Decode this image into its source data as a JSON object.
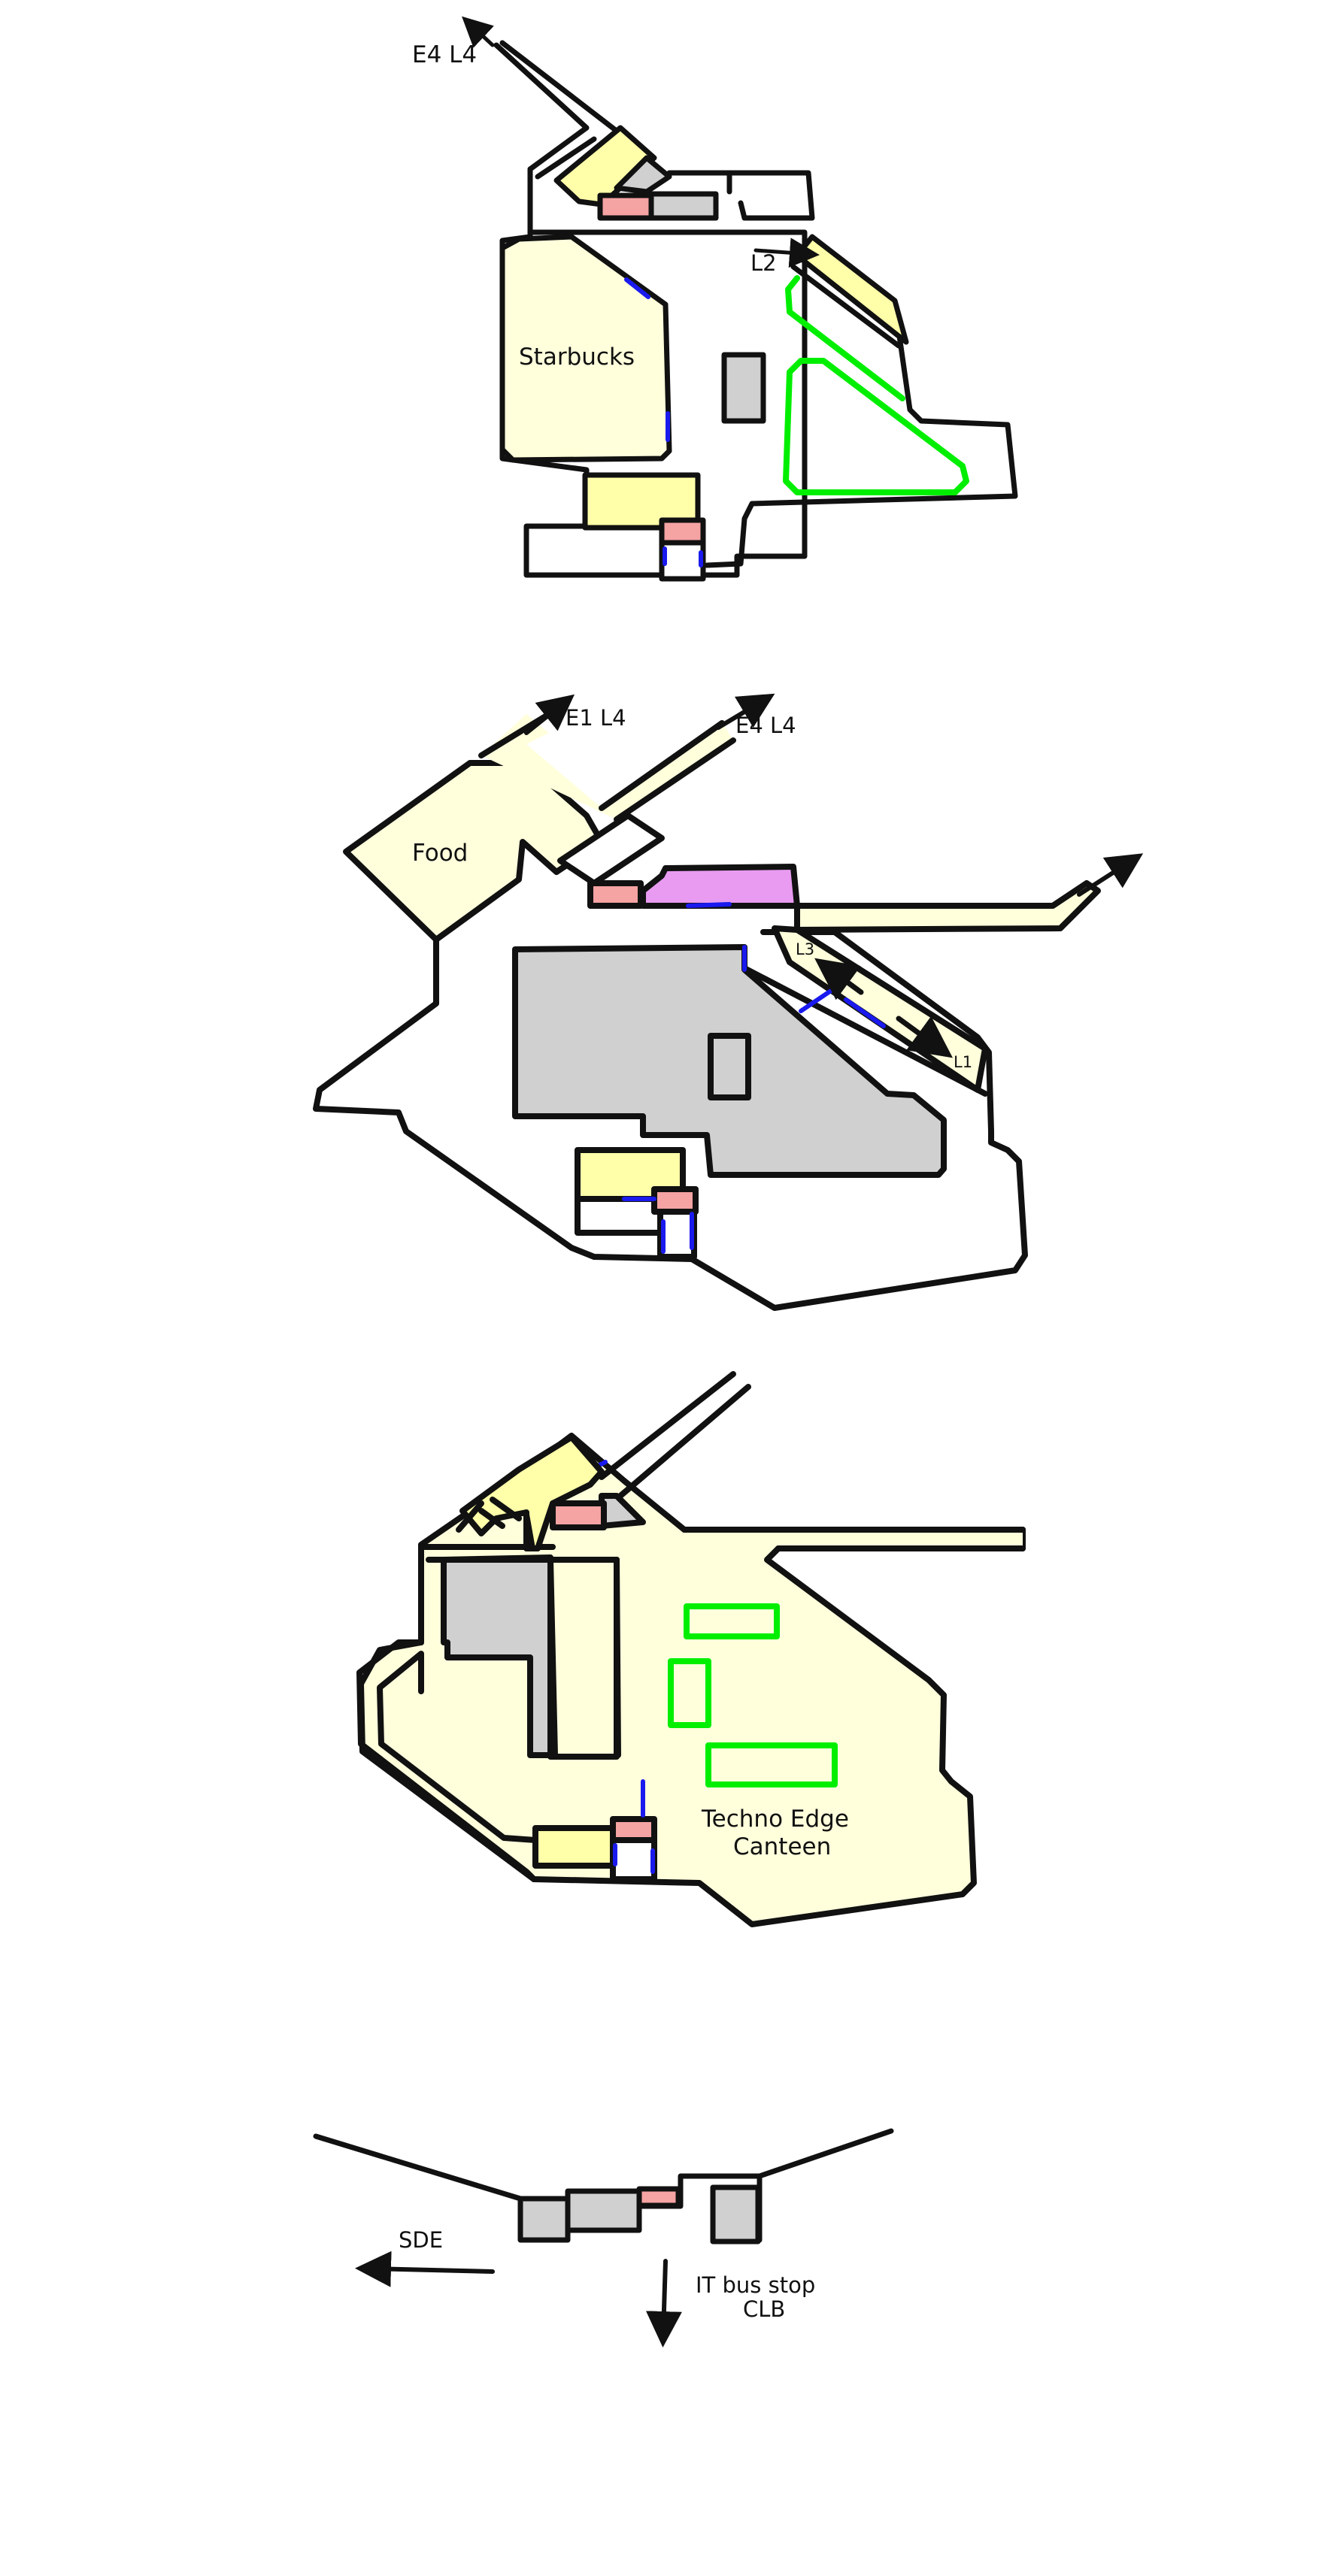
{
  "colors": {
    "outline": "#111111",
    "pale_yellow": "#ffffdc",
    "yellow": "#ffffaa",
    "pink": "#f5a3a3",
    "gray": "#d0d0d0",
    "green": "#00ee00",
    "blue": "#1a1aee",
    "purple": "#e89bf0",
    "background": "#ffffff"
  },
  "level_top": {
    "arrow_e4_l4": "E4 L4",
    "arrow_l2": "L2",
    "starbucks": "Starbucks"
  },
  "level_second": {
    "arrow_e1_l4": "E1 L4",
    "arrow_e4_l4": "E4 L4",
    "food": "Food",
    "escalator_l3": "L3",
    "escalator_l1": "L1"
  },
  "level_third": {
    "canteen_line1": "Techno Edge",
    "canteen_line2": "Canteen"
  },
  "level_ground": {
    "arrow_sde": "SDE",
    "bus_stop_line1": "IT bus stop",
    "bus_stop_line2": "CLB"
  }
}
